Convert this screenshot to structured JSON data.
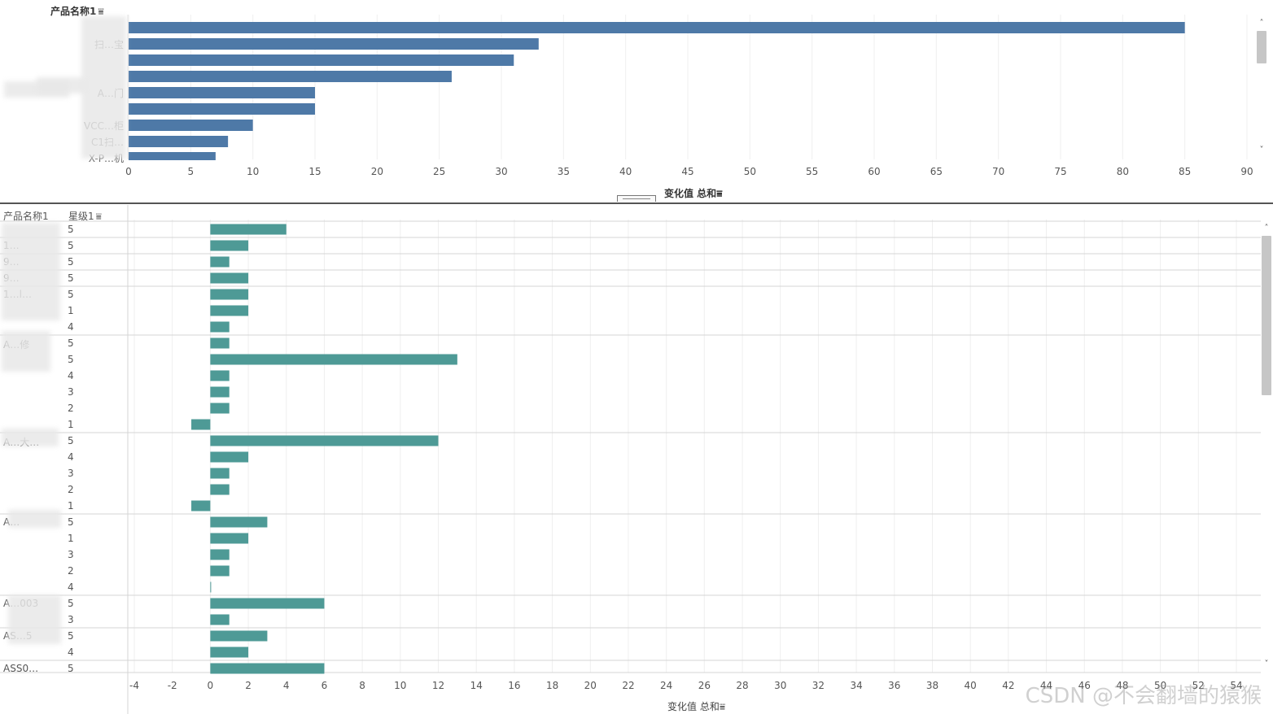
{
  "chart_data": [
    {
      "type": "bar",
      "orientation": "horizontal",
      "row_header": "产品名称1",
      "categories": [
        "",
        "扫…宝",
        "",
        "",
        "A…门",
        "",
        "VCC…柜",
        "C1扫…",
        "X-P…机"
      ],
      "values": [
        85,
        33,
        31,
        26,
        15,
        15,
        10,
        8,
        7
      ],
      "xlabel": "变化值 总和",
      "xlim": [
        0,
        90
      ],
      "xticks": [
        "0",
        "5",
        "10",
        "15",
        "20",
        "25",
        "30",
        "35",
        "40",
        "45",
        "50",
        "55",
        "60",
        "65",
        "70",
        "75",
        "80",
        "85",
        "90"
      ],
      "bar_color": "#4e79a7",
      "grid": "vertical"
    },
    {
      "type": "bar",
      "orientation": "horizontal",
      "row_headers": [
        "产品名称1",
        "星级1"
      ],
      "groups": [
        {
          "label": "",
          "rows": [
            {
              "star": "5",
              "value": 4
            }
          ]
        },
        {
          "label": "1…",
          "rows": [
            {
              "star": "5",
              "value": 2
            }
          ]
        },
        {
          "label": "9…",
          "rows": [
            {
              "star": "5",
              "value": 1
            }
          ]
        },
        {
          "label": "9…",
          "rows": [
            {
              "star": "5",
              "value": 2
            }
          ]
        },
        {
          "label": "1…l…",
          "rows": [
            {
              "star": "5",
              "value": 2
            },
            {
              "star": "1",
              "value": 2
            },
            {
              "star": "4",
              "value": 1
            }
          ]
        },
        {
          "label": "A…修",
          "rows": [
            {
              "star": "5",
              "value": 1
            },
            {
              "star": "5",
              "value": 13
            },
            {
              "star": "4",
              "value": 1
            },
            {
              "star": "3",
              "value": 1
            },
            {
              "star": "2",
              "value": 1
            },
            {
              "star": "1",
              "value": -1
            }
          ]
        },
        {
          "label": "A…大…",
          "rows": [
            {
              "star": "5",
              "value": 12
            },
            {
              "star": "4",
              "value": 2
            },
            {
              "star": "3",
              "value": 1
            },
            {
              "star": "2",
              "value": 1
            },
            {
              "star": "1",
              "value": -1
            }
          ]
        },
        {
          "label": "A…",
          "rows": [
            {
              "star": "5",
              "value": 3
            },
            {
              "star": "1",
              "value": 2
            },
            {
              "star": "3",
              "value": 1
            },
            {
              "star": "2",
              "value": 1
            },
            {
              "star": "4",
              "value": 0
            }
          ]
        },
        {
          "label": "A…003",
          "rows": [
            {
              "star": "5",
              "value": 6
            },
            {
              "star": "3",
              "value": 1
            }
          ]
        },
        {
          "label": "AS…5",
          "rows": [
            {
              "star": "5",
              "value": 3
            },
            {
              "star": "4",
              "value": 2
            }
          ]
        },
        {
          "label": "ASS0…",
          "rows": [
            {
              "star": "5",
              "value": 6
            }
          ]
        }
      ],
      "xlabel": "变化值 总和",
      "xlim": [
        -4,
        54
      ],
      "xticks": [
        "-4",
        "-2",
        "0",
        "2",
        "4",
        "6",
        "8",
        "10",
        "12",
        "14",
        "16",
        "18",
        "20",
        "22",
        "24",
        "26",
        "28",
        "30",
        "32",
        "34",
        "36",
        "38",
        "40",
        "42",
        "44",
        "46",
        "48",
        "50",
        "52",
        "54"
      ],
      "bar_color": "#4e9a96",
      "grid": "vertical"
    }
  ],
  "sort_icon": "sort-descending-icon",
  "watermark": "CSDN @不会翻墙的猿猴"
}
